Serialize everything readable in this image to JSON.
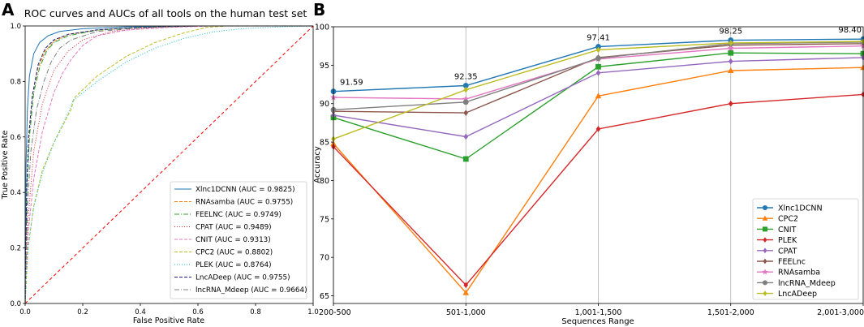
{
  "panel_a_letter": "A",
  "panel_b_letter": "B",
  "chart_data": [
    {
      "type": "line",
      "panel": "A",
      "title": "ROC curves and AUCs of all tools on the human test set",
      "xlabel": "False Positive Rate",
      "ylabel": "True Positive Rate",
      "xlim": [
        0,
        1
      ],
      "ylim": [
        0,
        1
      ],
      "xticks": [
        "0.0",
        "0.2",
        "0.4",
        "0.6",
        "0.8",
        "1.0"
      ],
      "yticks": [
        "0.0",
        "0.2",
        "0.4",
        "0.6",
        "0.8",
        "1.0"
      ],
      "legend_position": "bottom-right",
      "series": [
        {
          "name": "Xlnc1DCNN (AUC = 0.9825)",
          "color": "#1f77b4",
          "dash": "solid",
          "points": [
            [
              0,
              0
            ],
            [
              0.003,
              0.5
            ],
            [
              0.008,
              0.7
            ],
            [
              0.015,
              0.82
            ],
            [
              0.03,
              0.9
            ],
            [
              0.05,
              0.94
            ],
            [
              0.08,
              0.965
            ],
            [
              0.12,
              0.98
            ],
            [
              0.2,
              0.99
            ],
            [
              0.35,
              0.997
            ],
            [
              0.6,
              1
            ],
            [
              1,
              1
            ]
          ]
        },
        {
          "name": "RNAsamba (AUC = 0.9755)",
          "color": "#ff7f0e",
          "dash": "4,2",
          "points": [
            [
              0,
              0
            ],
            [
              0.005,
              0.4
            ],
            [
              0.012,
              0.6
            ],
            [
              0.025,
              0.75
            ],
            [
              0.045,
              0.85
            ],
            [
              0.07,
              0.91
            ],
            [
              0.1,
              0.945
            ],
            [
              0.15,
              0.97
            ],
            [
              0.25,
              0.985
            ],
            [
              0.4,
              0.995
            ],
            [
              0.6,
              1
            ],
            [
              1,
              1
            ]
          ]
        },
        {
          "name": "FEELNC (AUC = 0.9749)",
          "color": "#2ca02c",
          "dash": "6,2,1,2",
          "points": [
            [
              0,
              0
            ],
            [
              0.006,
              0.4
            ],
            [
              0.015,
              0.6
            ],
            [
              0.03,
              0.76
            ],
            [
              0.05,
              0.85
            ],
            [
              0.075,
              0.91
            ],
            [
              0.1,
              0.94
            ],
            [
              0.15,
              0.965
            ],
            [
              0.25,
              0.985
            ],
            [
              0.4,
              0.995
            ],
            [
              0.6,
              1
            ],
            [
              1,
              1
            ]
          ]
        },
        {
          "name": "CPAT (AUC = 0.9489)",
          "color": "#d62728",
          "dash": "1,2",
          "points": [
            [
              0,
              0
            ],
            [
              0.01,
              0.3
            ],
            [
              0.03,
              0.55
            ],
            [
              0.06,
              0.72
            ],
            [
              0.1,
              0.84
            ],
            [
              0.15,
              0.91
            ],
            [
              0.2,
              0.95
            ],
            [
              0.3,
              0.98
            ],
            [
              0.45,
              0.995
            ],
            [
              0.6,
              1
            ],
            [
              1,
              1
            ]
          ]
        },
        {
          "name": "CNIT (AUC = 0.9313)",
          "color": "#e377c2",
          "dash": "4,2",
          "points": [
            [
              0,
              0
            ],
            [
              0.01,
              0.25
            ],
            [
              0.03,
              0.45
            ],
            [
              0.06,
              0.62
            ],
            [
              0.1,
              0.76
            ],
            [
              0.13,
              0.83
            ],
            [
              0.16,
              0.88
            ],
            [
              0.2,
              0.93
            ],
            [
              0.25,
              0.965
            ],
            [
              0.35,
              0.985
            ],
            [
              0.5,
              0.995
            ],
            [
              0.65,
              1
            ],
            [
              1,
              1
            ]
          ]
        },
        {
          "name": "CPC2 (AUC = 0.8802)",
          "color": "#bcbd22",
          "dash": "4,2",
          "points": [
            [
              0,
              0
            ],
            [
              0.01,
              0.2
            ],
            [
              0.03,
              0.35
            ],
            [
              0.06,
              0.48
            ],
            [
              0.1,
              0.58
            ],
            [
              0.16,
              0.7
            ],
            [
              0.17,
              0.74
            ],
            [
              0.25,
              0.82
            ],
            [
              0.35,
              0.89
            ],
            [
              0.45,
              0.94
            ],
            [
              0.55,
              0.975
            ],
            [
              0.63,
              0.995
            ],
            [
              0.7,
              1
            ],
            [
              1,
              1
            ]
          ]
        },
        {
          "name": "PLEK (AUC = 0.8764)",
          "color": "#17becf",
          "dash": "1,2",
          "points": [
            [
              0,
              0
            ],
            [
              0.01,
              0.2
            ],
            [
              0.03,
              0.35
            ],
            [
              0.06,
              0.47
            ],
            [
              0.1,
              0.58
            ],
            [
              0.16,
              0.71
            ],
            [
              0.165,
              0.73
            ],
            [
              0.25,
              0.8
            ],
            [
              0.35,
              0.87
            ],
            [
              0.45,
              0.92
            ],
            [
              0.55,
              0.955
            ],
            [
              0.65,
              0.978
            ],
            [
              0.75,
              0.99
            ],
            [
              0.9,
              0.997
            ],
            [
              1,
              1
            ]
          ]
        },
        {
          "name": "LncADeep (AUC = 0.9755)",
          "color": "#1f1f8a",
          "dash": "4,2",
          "points": [
            [
              0,
              0
            ],
            [
              0.005,
              0.4
            ],
            [
              0.012,
              0.6
            ],
            [
              0.025,
              0.75
            ],
            [
              0.045,
              0.86
            ],
            [
              0.07,
              0.92
            ],
            [
              0.1,
              0.95
            ],
            [
              0.15,
              0.97
            ],
            [
              0.25,
              0.986
            ],
            [
              0.4,
              0.995
            ],
            [
              0.6,
              1
            ],
            [
              1,
              1
            ]
          ]
        },
        {
          "name": "lncRNA_Mdeep (AUC = 0.9664)",
          "color": "#7f7f7f",
          "dash": "6,2,1,2",
          "points": [
            [
              0,
              0
            ],
            [
              0.008,
              0.35
            ],
            [
              0.02,
              0.55
            ],
            [
              0.04,
              0.7
            ],
            [
              0.065,
              0.8
            ],
            [
              0.09,
              0.87
            ],
            [
              0.12,
              0.92
            ],
            [
              0.16,
              0.95
            ],
            [
              0.25,
              0.98
            ],
            [
              0.4,
              0.993
            ],
            [
              0.6,
              1
            ],
            [
              1,
              1
            ]
          ]
        }
      ],
      "diagonal": {
        "color": "#ff0000",
        "dash": "4,3"
      }
    },
    {
      "type": "line",
      "panel": "B",
      "title": "",
      "xlabel": "Sequences Range",
      "ylabel": "Accuracy",
      "categories": [
        "200-500",
        "501-1,000",
        "1,001-1,500",
        "1,501-2,000",
        "2,001-3,000"
      ],
      "ylim": [
        64,
        100
      ],
      "yticks": [
        65,
        70,
        75,
        80,
        85,
        90,
        95,
        100
      ],
      "grid": "x",
      "legend_position": "bottom-right",
      "annotations": [
        {
          "index": 0,
          "value": 91.59,
          "text": "91.59"
        },
        {
          "index": 1,
          "value": 92.35,
          "text": "92.35"
        },
        {
          "index": 2,
          "value": 97.41,
          "text": "97.41"
        },
        {
          "index": 3,
          "value": 98.25,
          "text": "98.25"
        },
        {
          "index": 4,
          "value": 98.4,
          "text": "98.40"
        }
      ],
      "series": [
        {
          "name": "Xlnc1DCNN",
          "color": "#1f77b4",
          "marker": "circle",
          "values": [
            91.59,
            92.35,
            97.41,
            98.25,
            98.4
          ]
        },
        {
          "name": "CPC2",
          "color": "#ff7f0e",
          "marker": "triangle-up",
          "values": [
            84.8,
            65.4,
            91.0,
            94.3,
            94.7
          ]
        },
        {
          "name": "CNIT",
          "color": "#2ca02c",
          "marker": "square",
          "values": [
            88.2,
            82.8,
            94.8,
            96.6,
            96.5
          ]
        },
        {
          "name": "PLEK",
          "color": "#d62728",
          "marker": "diamond",
          "values": [
            84.4,
            66.4,
            86.7,
            90.0,
            91.2
          ]
        },
        {
          "name": "CPAT",
          "color": "#9467bd",
          "marker": "diamond",
          "values": [
            88.5,
            85.7,
            94.0,
            95.5,
            96.0
          ]
        },
        {
          "name": "FEELnc",
          "color": "#8c564b",
          "marker": "diamond",
          "values": [
            89.0,
            88.8,
            96.0,
            97.6,
            97.8
          ]
        },
        {
          "name": "RNAsamba",
          "color": "#e377c2",
          "marker": "star",
          "values": [
            90.8,
            90.6,
            95.8,
            97.2,
            97.5
          ]
        },
        {
          "name": "lncRNA_Mdeep",
          "color": "#7f7f7f",
          "marker": "circle",
          "values": [
            89.2,
            90.2,
            95.9,
            97.8,
            98.0
          ]
        },
        {
          "name": "LncADeep",
          "color": "#bcbd22",
          "marker": "diamond",
          "values": [
            85.4,
            91.8,
            97.0,
            97.9,
            98.1
          ]
        }
      ]
    }
  ]
}
